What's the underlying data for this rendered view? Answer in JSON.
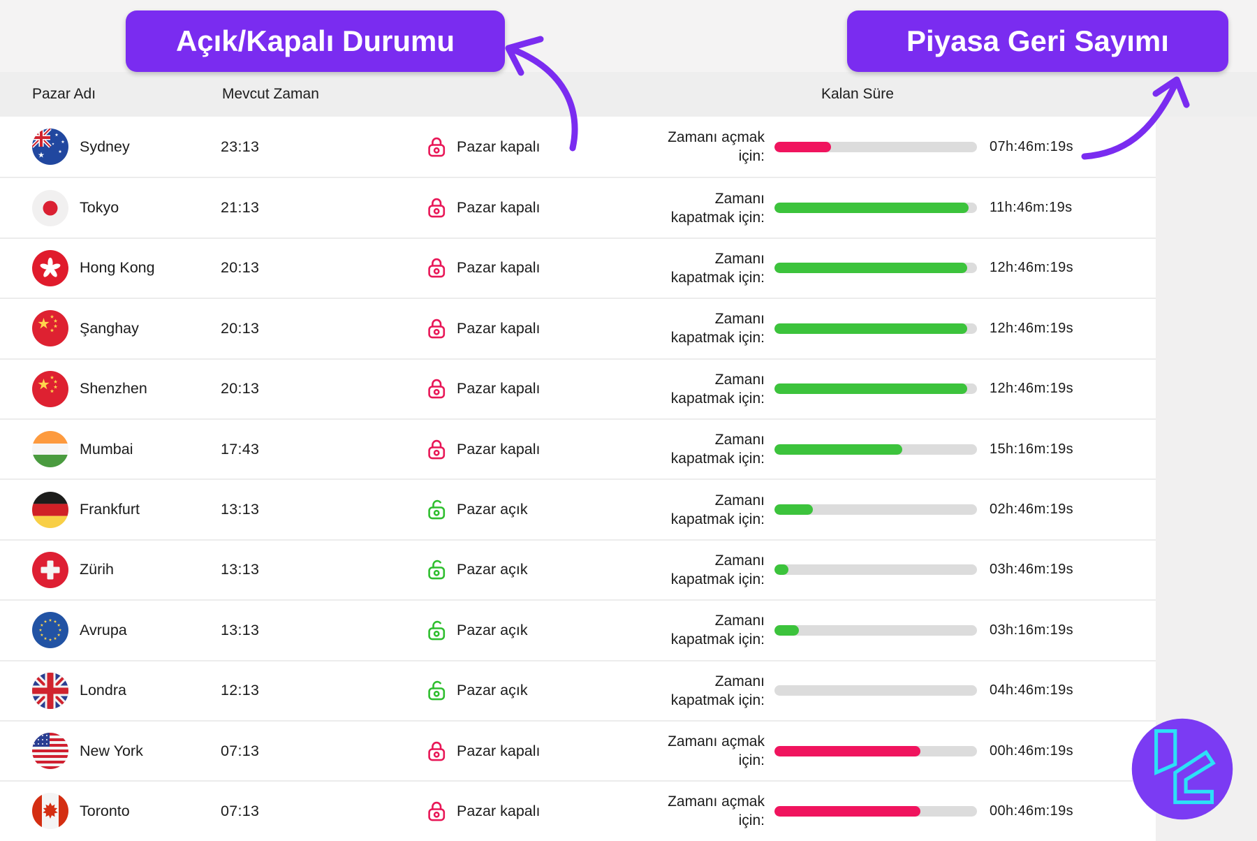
{
  "annotations": {
    "status_badge_label": "Açık/Kapalı Durumu",
    "countdown_badge_label": "Piyasa Geri Sayımı"
  },
  "table": {
    "headers": {
      "market_name": "Pazar Adı",
      "current_time": "Mevcut Zaman",
      "remaining_time": "Kalan Süre"
    },
    "rows": [
      {
        "market": "Sydney",
        "flag": "flag-australia",
        "current_time": "23:13",
        "status": "closed",
        "status_label": "Pazar kapalı",
        "countdown_label_lines": [
          "Zamanı açmak",
          "için:"
        ],
        "progress_percent": 28,
        "bar_color": "#f0145e",
        "remaining": "07h:46m:19s"
      },
      {
        "market": "Tokyo",
        "flag": "flag-japan",
        "current_time": "21:13",
        "status": "closed",
        "status_label": "Pazar kapalı",
        "countdown_label_lines": [
          "Zamanı",
          "kapatmak için:"
        ],
        "progress_percent": 96,
        "bar_color": "#3cc33c",
        "remaining": "11h:46m:19s"
      },
      {
        "market": "Hong Kong",
        "flag": "flag-hong-kong",
        "current_time": "20:13",
        "status": "closed",
        "status_label": "Pazar kapalı",
        "countdown_label_lines": [
          "Zamanı",
          "kapatmak için:"
        ],
        "progress_percent": 95,
        "bar_color": "#3cc33c",
        "remaining": "12h:46m:19s"
      },
      {
        "market": "Şanghay",
        "flag": "flag-china",
        "current_time": "20:13",
        "status": "closed",
        "status_label": "Pazar kapalı",
        "countdown_label_lines": [
          "Zamanı",
          "kapatmak için:"
        ],
        "progress_percent": 95,
        "bar_color": "#3cc33c",
        "remaining": "12h:46m:19s"
      },
      {
        "market": "Shenzhen",
        "flag": "flag-china",
        "current_time": "20:13",
        "status": "closed",
        "status_label": "Pazar kapalı",
        "countdown_label_lines": [
          "Zamanı",
          "kapatmak için:"
        ],
        "progress_percent": 95,
        "bar_color": "#3cc33c",
        "remaining": "12h:46m:19s"
      },
      {
        "market": "Mumbai",
        "flag": "flag-india",
        "current_time": "17:43",
        "status": "closed",
        "status_label": "Pazar kapalı",
        "countdown_label_lines": [
          "Zamanı",
          "kapatmak için:"
        ],
        "progress_percent": 63,
        "bar_color": "#3cc33c",
        "remaining": "15h:16m:19s"
      },
      {
        "market": "Frankfurt",
        "flag": "flag-germany",
        "current_time": "13:13",
        "status": "open",
        "status_label": "Pazar açık",
        "countdown_label_lines": [
          "Zamanı",
          "kapatmak için:"
        ],
        "progress_percent": 19,
        "bar_color": "#3cc33c",
        "remaining": "02h:46m:19s"
      },
      {
        "market": "Zürih",
        "flag": "flag-switzerland",
        "current_time": "13:13",
        "status": "open",
        "status_label": "Pazar açık",
        "countdown_label_lines": [
          "Zamanı",
          "kapatmak için:"
        ],
        "progress_percent": 7,
        "bar_color": "#3cc33c",
        "remaining": "03h:46m:19s"
      },
      {
        "market": "Avrupa",
        "flag": "flag-eu",
        "current_time": "13:13",
        "status": "open",
        "status_label": "Pazar açık",
        "countdown_label_lines": [
          "Zamanı",
          "kapatmak için:"
        ],
        "progress_percent": 12,
        "bar_color": "#3cc33c",
        "remaining": "03h:16m:19s"
      },
      {
        "market": "Londra",
        "flag": "flag-uk",
        "current_time": "12:13",
        "status": "open",
        "status_label": "Pazar açık",
        "countdown_label_lines": [
          "Zamanı",
          "kapatmak için:"
        ],
        "progress_percent": 0,
        "bar_color": "#3cc33c",
        "remaining": "04h:46m:19s"
      },
      {
        "market": "New York",
        "flag": "flag-usa",
        "current_time": "07:13",
        "status": "closed",
        "status_label": "Pazar kapalı",
        "countdown_label_lines": [
          "Zamanı açmak",
          "için:"
        ],
        "progress_percent": 72,
        "bar_color": "#f0145e",
        "remaining": "00h:46m:19s"
      },
      {
        "market": "Toronto",
        "flag": "flag-canada",
        "current_time": "07:13",
        "status": "closed",
        "status_label": "Pazar kapalı",
        "countdown_label_lines": [
          "Zamanı açmak",
          "için:"
        ],
        "progress_percent": 72,
        "bar_color": "#f0145e",
        "remaining": "00h:46m:19s"
      }
    ]
  },
  "colors": {
    "badge_purple": "#7a2cf0",
    "progress_pink": "#f0145e",
    "progress_green": "#3cc33c",
    "progress_track": "#dcdcdc",
    "lock_closed": "#e81757",
    "lock_open": "#2fbe2f",
    "logo_purple": "#7b3bf3",
    "logo_cyan": "#2ce0f7"
  },
  "logo": {
    "name": "tc-logo"
  }
}
